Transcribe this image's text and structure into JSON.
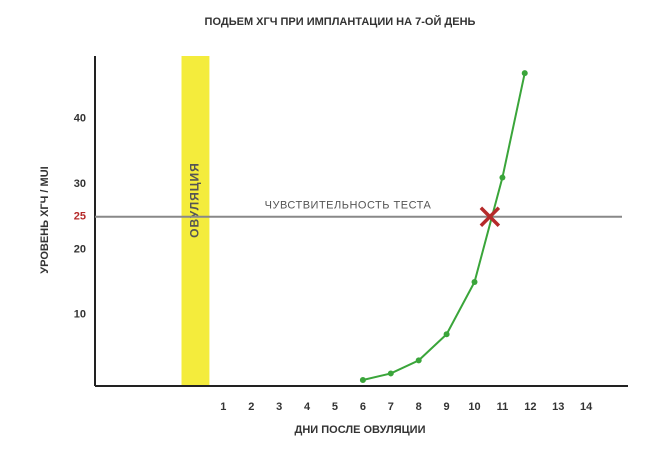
{
  "chart_data": {
    "type": "line",
    "title": "ПОДЬЕМ ХГЧ ПРИ ИМПЛАНТАЦИИ НА 7-ОЙ ДЕНЬ",
    "x_label": "ДНИ ПОСЛЕ ОВУЛЯЦИИ",
    "y_label": "УРОВЕНЬ ХГЧ / MUI",
    "x": [
      6,
      7,
      8,
      9,
      10,
      11,
      11.8
    ],
    "series": [
      {
        "color": "#3aa53a",
        "values": [
          0,
          1,
          3,
          7,
          15,
          31,
          47
        ]
      }
    ],
    "xlim": [
      -3.6,
      15.5
    ],
    "ylim": [
      -1,
      50
    ],
    "xticks": [
      1,
      2,
      3,
      4,
      5,
      6,
      7,
      8,
      9,
      10,
      11,
      12,
      13,
      14
    ],
    "yticks": [
      10,
      20,
      25,
      30,
      40
    ],
    "threshold": {
      "value": 25,
      "label": "ЧУВСТВИТЕЛЬНОСТЬ ТЕСТА",
      "color": "#888888",
      "cross_x": 10.55,
      "cross_color": "#b52a2a"
    },
    "ovulation_band": {
      "label": "ОВУЛЯЦИЯ",
      "x": [
        -0.5,
        0.5
      ],
      "color": "#f4ec3c"
    }
  }
}
